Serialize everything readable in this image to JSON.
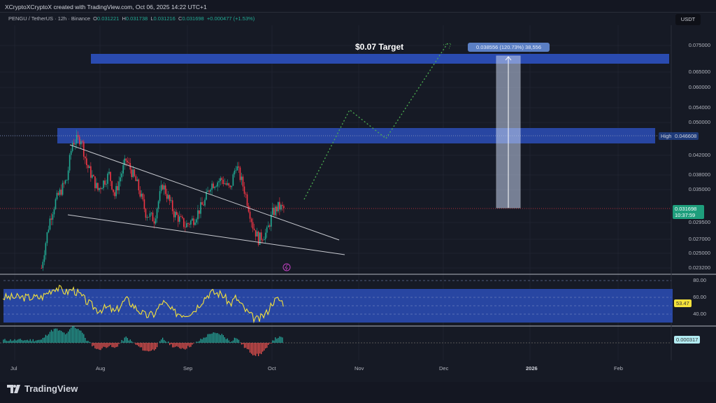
{
  "header": {
    "credit": "XCryptoXCryptoX created with TradingView.com, Oct 06, 2025 14:22 UTC+1",
    "symbol": "PENGU / TetherUS · 12h · Binance",
    "o_label": "O",
    "o": "0.031221",
    "h_label": "H",
    "h": "0.031738",
    "l_label": "L",
    "l": "0.031216",
    "c_label": "C",
    "c": "0.031698",
    "change": "+0.000477 (+1.53%)"
  },
  "currency": "USDT",
  "price_axis": [
    "0.075000",
    "0.065000",
    "0.060000",
    "0.054000",
    "0.050000",
    "0.042000",
    "0.038000",
    "0.035000",
    "0.029500",
    "0.027000",
    "0.025000",
    "0.023200"
  ],
  "high_tag": {
    "label": "High",
    "value": "0.046608"
  },
  "last_price": {
    "value": "0.031698",
    "countdown": "10:37:59"
  },
  "rsi_axis": [
    "80.00",
    "60.00",
    "40.00"
  ],
  "rsi_value": "53.47",
  "macd_value": "0.000317",
  "time_axis": [
    "Jul",
    "Aug",
    "Sep",
    "Oct",
    "Nov",
    "Dec",
    "2026",
    "Feb"
  ],
  "annotations": {
    "target": "$0.07 Target",
    "measure": "0.038556 (120.73%) 38,556"
  },
  "footer": {
    "brand": "TradingView"
  },
  "colors": {
    "up": "#22ab94",
    "down": "#f23645",
    "zone": "#2a4bb0",
    "rsi": "#f5e23b",
    "projection": "#4caf50"
  },
  "chart_data": {
    "type": "candlestick",
    "title": "PENGU / TetherUS · 12h · Binance",
    "scale": "log",
    "ylim": [
      0.0232,
      0.075
    ],
    "x_dates": [
      "Jul 12",
      "Jul 15",
      "Jul 17",
      "Jul 21",
      "Jul 23",
      "Jul 26",
      "Jul 28",
      "Aug 1",
      "Aug 5",
      "Aug 7",
      "Aug 11",
      "Aug 15",
      "Aug 18",
      "Aug 21",
      "Aug 24",
      "Aug 28",
      "Sep 1",
      "Sep 4",
      "Sep 8",
      "Sep 10",
      "Sep 14",
      "Sep 17",
      "Sep 19",
      "Sep 22",
      "Sep 25",
      "Sep 27",
      "Sep 30",
      "Oct 2",
      "Oct 4",
      "Oct 6"
    ],
    "close": [
      0.0232,
      0.03,
      0.033,
      0.037,
      0.045,
      0.046,
      0.04,
      0.035,
      0.038,
      0.034,
      0.041,
      0.036,
      0.031,
      0.03,
      0.036,
      0.031,
      0.029,
      0.03,
      0.033,
      0.036,
      0.037,
      0.035,
      0.04,
      0.035,
      0.029,
      0.027,
      0.028,
      0.031,
      0.032,
      0.031698
    ],
    "rsi": [
      60,
      68,
      72,
      66,
      70,
      62,
      55,
      45,
      48,
      42,
      58,
      46,
      38,
      40,
      55,
      42,
      40,
      44,
      60,
      66,
      64,
      52,
      60,
      46,
      36,
      33,
      42,
      55,
      58,
      53.47
    ],
    "macd_hist": [
      0.0002,
      0.0008,
      0.001,
      0.0006,
      0.0012,
      0.0009,
      0.0002,
      -0.0005,
      -0.0002,
      -0.0004,
      0.0004,
      -0.0002,
      -0.0006,
      -0.0005,
      0.0003,
      -0.0003,
      -0.0004,
      -0.0001,
      0.0004,
      0.0007,
      0.0006,
      0.0001,
      0.0004,
      -0.0003,
      -0.0008,
      -0.0009,
      -0.0004,
      0.0002,
      0.0004,
      0.000317
    ]
  }
}
